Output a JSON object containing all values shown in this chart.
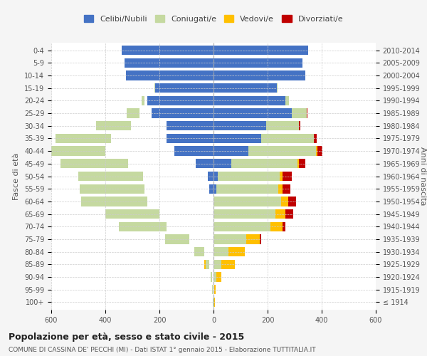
{
  "age_groups": [
    "100+",
    "95-99",
    "90-94",
    "85-89",
    "80-84",
    "75-79",
    "70-74",
    "65-69",
    "60-64",
    "55-59",
    "50-54",
    "45-49",
    "40-44",
    "35-39",
    "30-34",
    "25-29",
    "20-24",
    "15-19",
    "10-14",
    "5-9",
    "0-4"
  ],
  "birth_years": [
    "≤ 1914",
    "1915-1919",
    "1920-1924",
    "1925-1929",
    "1930-1934",
    "1935-1939",
    "1940-1944",
    "1945-1949",
    "1950-1954",
    "1955-1959",
    "1960-1964",
    "1965-1969",
    "1970-1974",
    "1975-1979",
    "1980-1984",
    "1985-1989",
    "1990-1994",
    "1995-1999",
    "2000-2004",
    "2005-2009",
    "2010-2014"
  ],
  "males": {
    "celibi": [
      0,
      0,
      0,
      0,
      0,
      0,
      0,
      0,
      0,
      15,
      20,
      65,
      145,
      175,
      175,
      230,
      245,
      215,
      325,
      330,
      340
    ],
    "coniugati": [
      1,
      2,
      5,
      15,
      35,
      90,
      175,
      200,
      245,
      240,
      240,
      250,
      255,
      205,
      130,
      45,
      10,
      2,
      0,
      0,
      0
    ],
    "vedovi": [
      0,
      1,
      3,
      10,
      15,
      10,
      15,
      5,
      5,
      5,
      5,
      2,
      2,
      2,
      0,
      0,
      0,
      0,
      0,
      0,
      0
    ],
    "divorziati": [
      0,
      0,
      0,
      0,
      0,
      5,
      10,
      15,
      25,
      25,
      25,
      15,
      20,
      10,
      5,
      2,
      0,
      0,
      0,
      0,
      0
    ]
  },
  "females": {
    "nubili": [
      0,
      0,
      0,
      0,
      0,
      0,
      0,
      0,
      0,
      10,
      15,
      65,
      130,
      175,
      195,
      290,
      265,
      235,
      340,
      330,
      350
    ],
    "coniugate": [
      2,
      3,
      10,
      30,
      55,
      120,
      210,
      230,
      250,
      230,
      230,
      245,
      250,
      195,
      120,
      55,
      15,
      2,
      0,
      0,
      0
    ],
    "vedove": [
      2,
      4,
      20,
      50,
      60,
      50,
      45,
      35,
      25,
      15,
      10,
      5,
      3,
      2,
      0,
      0,
      0,
      0,
      0,
      0,
      0
    ],
    "divorziate": [
      0,
      0,
      0,
      0,
      0,
      5,
      10,
      30,
      30,
      30,
      35,
      25,
      20,
      10,
      5,
      2,
      0,
      0,
      0,
      0,
      0
    ]
  },
  "color_celibi": "#4472C4",
  "color_coniugati": "#c5d9a0",
  "color_vedovi": "#ffc000",
  "color_divorziati": "#c00000",
  "title": "Popolazione per età, sesso e stato civile - 2015",
  "subtitle": "COMUNE DI CASSINA DE' PECCHI (MI) - Dati ISTAT 1° gennaio 2015 - Elaborazione TUTTITALIA.IT",
  "ylabel_left": "Fasce di età",
  "ylabel_right": "Anni di nascita",
  "xlim": 600,
  "bg_color": "#f5f5f5",
  "plot_bg": "#ffffff"
}
